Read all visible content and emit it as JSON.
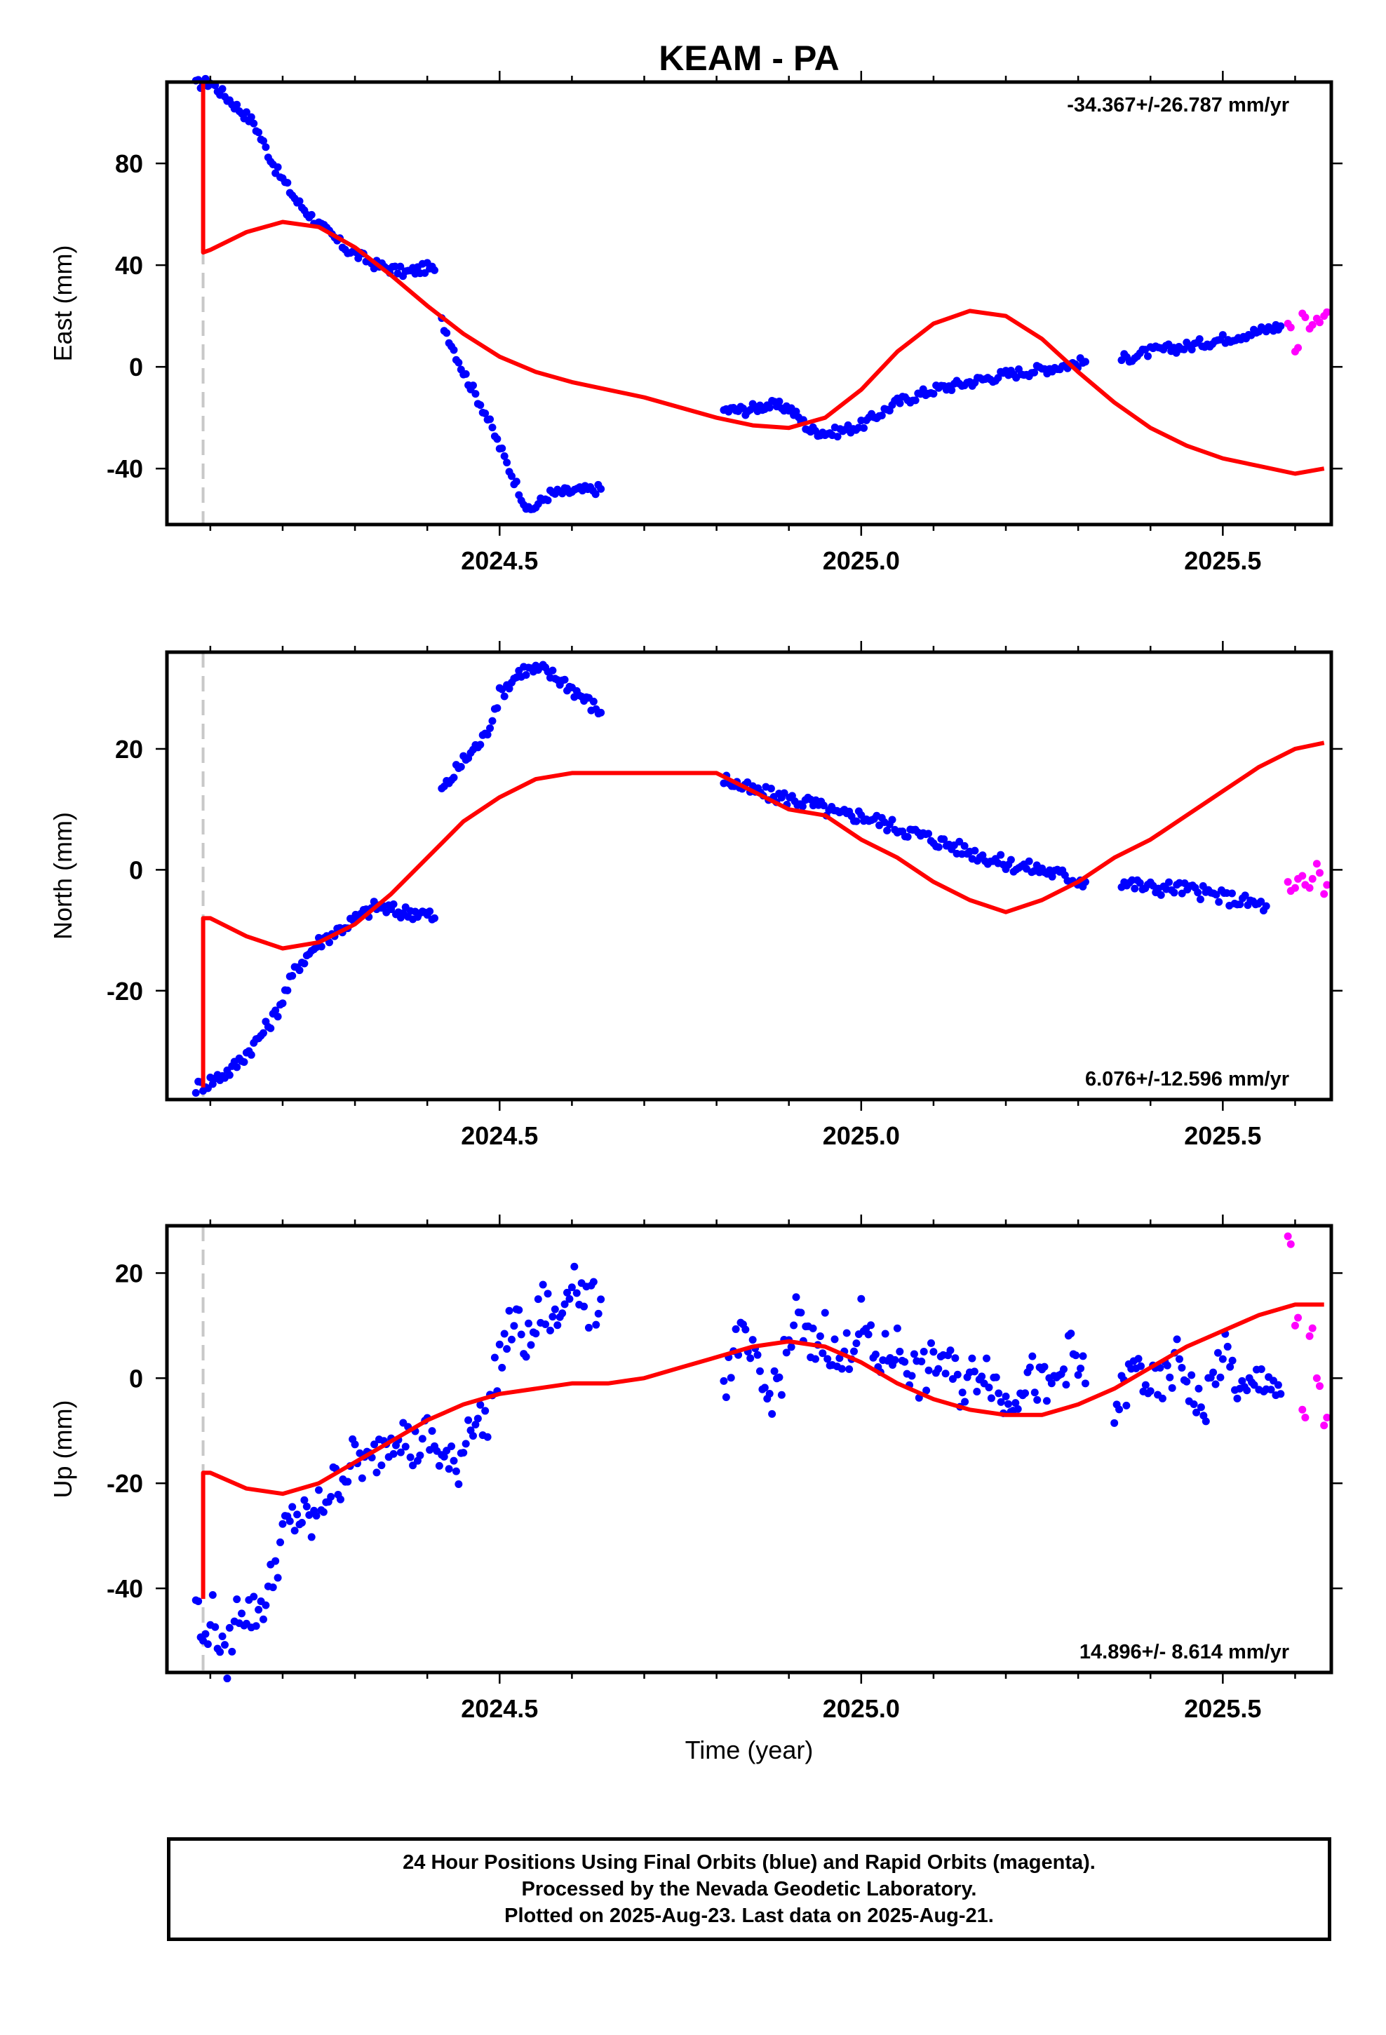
{
  "title": "KEAM - PA",
  "footer": {
    "line1": "24 Hour Positions Using Final Orbits (blue) and Rapid Orbits (magenta).",
    "line2": "Processed by the Nevada Geodetic Laboratory.",
    "line3": "Plotted on 2025-Aug-23. Last data on 2025-Aug-21."
  },
  "colors": {
    "final": "#0000ff",
    "rapid": "#ff00ff",
    "model": "#ff0000",
    "equipment_change": "#c8c8c8"
  },
  "chart_data": [
    {
      "type": "scatter",
      "title": "KEAM - PA",
      "xlabel": "",
      "ylabel": "East (mm)",
      "rate_label": "-34.367+/-26.787 mm/yr",
      "xlim": [
        2024.04,
        2025.65
      ],
      "ylim": [
        -62,
        112
      ],
      "x_ticks": [
        2024.5,
        2025.0,
        2025.5
      ],
      "x_tick_labels": [
        "2024.5",
        "2025.0",
        "2025.5"
      ],
      "y_ticks": [
        -40,
        0,
        40,
        80
      ],
      "y_tick_labels": [
        "-40",
        "0",
        "40",
        "80"
      ],
      "equipment_change_x": 2024.09,
      "final_segments": [
        {
          "x": [
            2024.08,
            2024.1,
            2024.13,
            2024.16,
            2024.19,
            2024.22,
            2024.25,
            2024.29,
            2024.33,
            2024.37,
            2024.4,
            2024.41
          ],
          "y": [
            111,
            112,
            104,
            96,
            78,
            65,
            56,
            46,
            40,
            37,
            39,
            38
          ]
        },
        {
          "x": [
            2024.42,
            2024.45,
            2024.48,
            2024.51,
            2024.54,
            2024.57,
            2024.6,
            2024.64
          ],
          "y": [
            18,
            -2,
            -18,
            -38,
            -57,
            -50,
            -49,
            -48
          ]
        },
        {
          "x": [
            2024.81,
            2024.84,
            2024.87,
            2024.9,
            2024.93,
            2024.96,
            2025.0,
            2025.05,
            2025.1,
            2025.15,
            2025.2,
            2025.25,
            2025.31
          ],
          "y": [
            -17,
            -17,
            -15,
            -16,
            -25,
            -26,
            -23,
            -14,
            -9,
            -6,
            -3,
            -1,
            2
          ]
        },
        {
          "x": [
            2025.36,
            2025.4,
            2025.45,
            2025.5,
            2025.55,
            2025.58
          ],
          "y": [
            3,
            6,
            8,
            11,
            14,
            16
          ]
        }
      ],
      "rapid": {
        "x": [
          2025.59,
          2025.6,
          2025.61,
          2025.62,
          2025.63,
          2025.64
        ],
        "y": [
          17,
          6,
          21,
          15,
          19,
          20
        ]
      },
      "model": {
        "x": [
          2024.09,
          2024.09,
          2024.1,
          2024.15,
          2024.2,
          2024.25,
          2024.3,
          2024.35,
          2024.4,
          2024.45,
          2024.5,
          2024.55,
          2024.6,
          2024.65,
          2024.7,
          2024.75,
          2024.8,
          2024.85,
          2024.9,
          2024.95,
          2025.0,
          2025.05,
          2025.1,
          2025.15,
          2025.2,
          2025.25,
          2025.3,
          2025.35,
          2025.4,
          2025.45,
          2025.5,
          2025.55,
          2025.6,
          2025.64
        ],
        "y": [
          112,
          45,
          46,
          53,
          57,
          55,
          47,
          36,
          24,
          13,
          4,
          -2,
          -6,
          -9,
          -12,
          -16,
          -20,
          -23,
          -24,
          -20,
          -9,
          6,
          17,
          22,
          20,
          11,
          -2,
          -14,
          -24,
          -31,
          -36,
          -39,
          -42,
          -40
        ]
      }
    },
    {
      "type": "scatter",
      "xlabel": "",
      "ylabel": "North (mm)",
      "rate_label": "6.076+/-12.596 mm/yr",
      "xlim": [
        2024.04,
        2025.65
      ],
      "ylim": [
        -38,
        36
      ],
      "x_ticks": [
        2024.5,
        2025.0,
        2025.5
      ],
      "x_tick_labels": [
        "2024.5",
        "2025.0",
        "2025.5"
      ],
      "y_ticks": [
        -20,
        0,
        20
      ],
      "y_tick_labels": [
        "-20",
        "0",
        "20"
      ],
      "equipment_change_x": 2024.09,
      "final_segments": [
        {
          "x": [
            2024.08,
            2024.1,
            2024.13,
            2024.16,
            2024.19,
            2024.22,
            2024.25,
            2024.29,
            2024.33,
            2024.36,
            2024.39,
            2024.41
          ],
          "y": [
            -36,
            -35,
            -33,
            -29,
            -24,
            -16,
            -12,
            -9,
            -6,
            -7,
            -7,
            -8
          ]
        },
        {
          "x": [
            2024.42,
            2024.45,
            2024.48,
            2024.5,
            2024.53,
            2024.56,
            2024.59,
            2024.62,
            2024.64
          ],
          "y": [
            13,
            18,
            22,
            29,
            33,
            33,
            31,
            28,
            26
          ]
        },
        {
          "x": [
            2024.81,
            2024.85,
            2024.89,
            2024.93,
            2024.97,
            2025.0,
            2025.05,
            2025.1,
            2025.15,
            2025.2,
            2025.25,
            2025.31
          ],
          "y": [
            15,
            13,
            12,
            11,
            9,
            9,
            7,
            5,
            3,
            1,
            0,
            -2
          ]
        },
        {
          "x": [
            2025.36,
            2025.4,
            2025.44,
            2025.48,
            2025.52,
            2025.56
          ],
          "y": [
            -2,
            -3,
            -3,
            -4,
            -5,
            -6
          ]
        }
      ],
      "rapid": {
        "x": [
          2025.59,
          2025.6,
          2025.61,
          2025.62,
          2025.63,
          2025.64
        ],
        "y": [
          -2,
          -3,
          -1,
          -3,
          1,
          -4
        ]
      },
      "model": {
        "x": [
          2024.09,
          2024.09,
          2024.1,
          2024.15,
          2024.2,
          2024.25,
          2024.3,
          2024.35,
          2024.4,
          2024.45,
          2024.5,
          2024.55,
          2024.6,
          2024.65,
          2024.7,
          2024.75,
          2024.8,
          2024.85,
          2024.9,
          2024.95,
          2025.0,
          2025.05,
          2025.1,
          2025.15,
          2025.2,
          2025.25,
          2025.3,
          2025.35,
          2025.4,
          2025.45,
          2025.5,
          2025.55,
          2025.6,
          2025.64
        ],
        "y": [
          -36,
          -8,
          -8,
          -11,
          -13,
          -12,
          -9,
          -4,
          2,
          8,
          12,
          15,
          16,
          16,
          16,
          16,
          16,
          13,
          10,
          9,
          5,
          2,
          -2,
          -5,
          -7,
          -5,
          -2,
          2,
          5,
          9,
          13,
          17,
          20,
          21
        ]
      }
    },
    {
      "type": "scatter",
      "xlabel": "Time (year)",
      "ylabel": "Up (mm)",
      "rate_label": "14.896+/- 8.614 mm/yr",
      "xlim": [
        2024.04,
        2025.65
      ],
      "ylim": [
        -56,
        29
      ],
      "x_ticks": [
        2024.5,
        2025.0,
        2025.5
      ],
      "x_tick_labels": [
        "2024.5",
        "2025.0",
        "2025.5"
      ],
      "y_ticks": [
        -40,
        -20,
        0,
        20
      ],
      "y_tick_labels": [
        "-40",
        "-20",
        "0",
        "20"
      ],
      "equipment_change_x": 2024.09,
      "final_segments": [
        {
          "x": [
            2024.08,
            2024.09,
            2024.1,
            2024.11,
            2024.12,
            2024.14,
            2024.16,
            2024.18,
            2024.2,
            2024.22,
            2024.24,
            2024.26,
            2024.28,
            2024.3,
            2024.32,
            2024.34,
            2024.36,
            2024.38,
            2024.4,
            2024.42,
            2024.44,
            2024.46,
            2024.48,
            2024.5,
            2024.52,
            2024.54,
            2024.56,
            2024.58,
            2024.6,
            2024.62,
            2024.64
          ],
          "y": [
            -41,
            -52,
            -44,
            -48,
            -55,
            -43,
            -45,
            -41,
            -30,
            -26,
            -28,
            -22,
            -19,
            -15,
            -17,
            -12,
            -9,
            -14,
            -11,
            -15,
            -18,
            -7,
            -9,
            4,
            11,
            6,
            14,
            10,
            21,
            13,
            15
          ]
        },
        {
          "x": [
            2024.81,
            2024.83,
            2024.85,
            2024.87,
            2024.89,
            2024.91,
            2024.93,
            2024.95,
            2024.97,
            2025.0,
            2025.02,
            2025.05,
            2025.08,
            2025.11,
            2025.14,
            2025.17,
            2025.2,
            2025.23,
            2025.26,
            2025.29,
            2025.31
          ],
          "y": [
            -1,
            8,
            3,
            -4,
            1,
            12,
            5,
            9,
            2,
            11,
            3,
            6,
            0,
            4,
            -2,
            3,
            -5,
            1,
            -3,
            5,
            -1
          ]
        },
        {
          "x": [
            2025.35,
            2025.38,
            2025.41,
            2025.44,
            2025.47,
            2025.5,
            2025.53,
            2025.56,
            2025.58
          ],
          "y": [
            -6,
            2,
            -3,
            4,
            -7,
            5,
            -4,
            1,
            -3
          ]
        }
      ],
      "rapid": {
        "x": [
          2025.59,
          2025.6,
          2025.61,
          2025.62,
          2025.63,
          2025.64
        ],
        "y": [
          27,
          10,
          -6,
          8,
          0,
          -9
        ]
      },
      "model": {
        "x": [
          2024.09,
          2024.09,
          2024.1,
          2024.15,
          2024.2,
          2024.25,
          2024.3,
          2024.35,
          2024.4,
          2024.45,
          2024.5,
          2024.55,
          2024.6,
          2024.65,
          2024.7,
          2024.75,
          2024.8,
          2024.85,
          2024.9,
          2024.95,
          2025.0,
          2025.05,
          2025.1,
          2025.15,
          2025.2,
          2025.25,
          2025.3,
          2025.35,
          2025.4,
          2025.45,
          2025.5,
          2025.55,
          2025.6,
          2025.64
        ],
        "y": [
          -42,
          -18,
          -18,
          -21,
          -22,
          -20,
          -16,
          -12,
          -8,
          -5,
          -3,
          -2,
          -1,
          -1,
          0,
          2,
          4,
          6,
          7,
          6,
          3,
          -1,
          -4,
          -6,
          -7,
          -7,
          -5,
          -2,
          2,
          6,
          9,
          12,
          14,
          14
        ]
      }
    }
  ]
}
